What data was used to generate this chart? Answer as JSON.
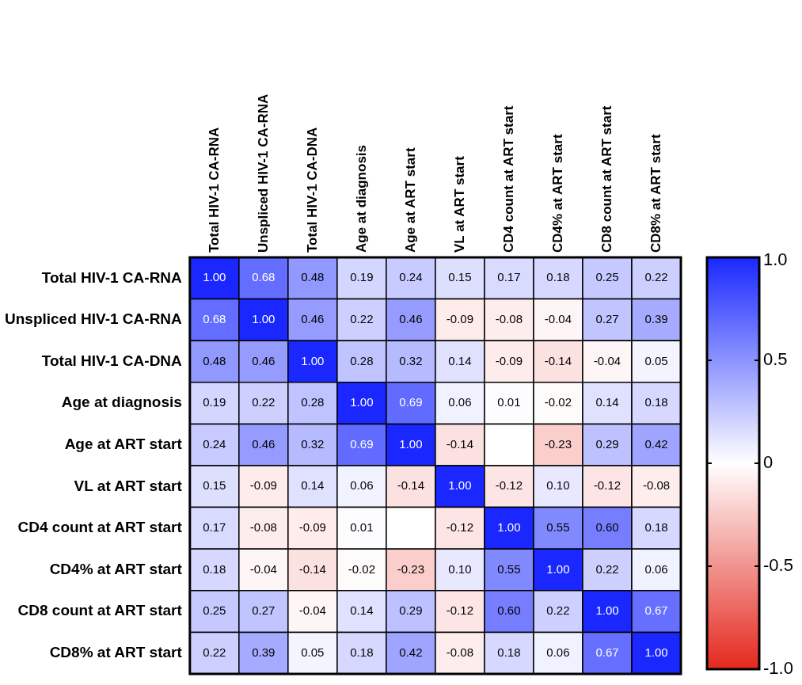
{
  "chart_data": {
    "type": "heatmap",
    "categories": [
      "Total HIV-1 CA-RNA",
      "Unspliced HIV-1 CA-RNA",
      "Total HIV-1 CA-DNA",
      "Age at diagnosis",
      "Age at ART start",
      "VL at ART start",
      "CD4 count at ART start",
      "CD4% at ART start",
      "CD8 count at ART start",
      "CD8% at ART start"
    ],
    "y_categories": [
      "Total HIV-1 CA-RNA",
      "Unspliced HIV-1 CA-RNA",
      "Total HIV-1 CA-DNA",
      "Age at diagnosis",
      "Age at ART start",
      "VL at ART start",
      "CD4 count at ART start",
      "CD4% at ART start",
      "CD8 count at ART start",
      "CD8% at ART start"
    ],
    "cells": [
      [
        1.0,
        0.68,
        0.48,
        0.19,
        0.24,
        0.15,
        0.17,
        0.18,
        0.25,
        0.22
      ],
      [
        0.68,
        1.0,
        0.46,
        0.22,
        0.46,
        -0.09,
        -0.08,
        -0.04,
        0.27,
        0.39
      ],
      [
        0.48,
        0.46,
        1.0,
        0.28,
        0.32,
        0.14,
        -0.09,
        -0.14,
        -0.04,
        0.05
      ],
      [
        0.19,
        0.22,
        0.28,
        1.0,
        0.69,
        0.06,
        0.01,
        -0.02,
        0.14,
        0.18
      ],
      [
        0.24,
        0.46,
        0.32,
        0.69,
        1.0,
        -0.14,
        null,
        -0.23,
        0.29,
        0.42
      ],
      [
        0.15,
        -0.09,
        0.14,
        0.06,
        -0.14,
        1.0,
        -0.12,
        0.1,
        -0.12,
        -0.08
      ],
      [
        0.17,
        -0.08,
        -0.09,
        0.01,
        null,
        -0.12,
        1.0,
        0.55,
        0.6,
        0.18
      ],
      [
        0.18,
        -0.04,
        -0.14,
        -0.02,
        -0.23,
        0.1,
        0.55,
        1.0,
        0.22,
        0.06
      ],
      [
        0.25,
        0.27,
        -0.04,
        0.14,
        0.29,
        -0.12,
        0.6,
        0.22,
        1.0,
        0.67
      ],
      [
        0.22,
        0.39,
        0.05,
        0.18,
        0.42,
        -0.08,
        0.18,
        0.06,
        0.67,
        1.0
      ]
    ],
    "cell_labels": [
      [
        "1.00",
        "0.68",
        "0.48",
        "0.19",
        "0.24",
        "0.15",
        "0.17",
        "0.18",
        "0.25",
        "0.22"
      ],
      [
        "0.68",
        "1.00",
        "0.46",
        "0.22",
        "0.46",
        "-0.09",
        "-0.08",
        "-0.04",
        "0.27",
        "0.39"
      ],
      [
        "0.48",
        "0.46",
        "1.00",
        "0.28",
        "0.32",
        "0.14",
        "-0.09",
        "-0.14",
        "-0.04",
        "0.05"
      ],
      [
        "0.19",
        "0.22",
        "0.28",
        "1.00",
        "0.69",
        "0.06",
        "0.01",
        "-0.02",
        "0.14",
        "0.18"
      ],
      [
        "0.24",
        "0.46",
        "0.32",
        "0.69",
        "1.00",
        "-0.14",
        null,
        "-0.23",
        "0.29",
        "0.42"
      ],
      [
        "0.15",
        "-0.09",
        "0.14",
        "0.06",
        "-0.14",
        "1.00",
        "-0.12",
        "0.10",
        "-0.12",
        "-0.08"
      ],
      [
        "0.17",
        "-0.08",
        "-0.09",
        "0.01",
        null,
        "-0.12",
        "1.00",
        "0.55",
        "0.60",
        "0.18"
      ],
      [
        "0.18",
        "-0.04",
        "-0.14",
        "-0.02",
        "-0.23",
        "0.10",
        "0.55",
        "1.00",
        "0.22",
        "0.06"
      ],
      [
        "0.25",
        "0.27",
        "-0.04",
        "0.14",
        "0.29",
        "-0.12",
        "0.60",
        "0.22",
        "1.00",
        "0.67"
      ],
      [
        "0.22",
        "0.39",
        "0.05",
        "0.18",
        "0.42",
        "-0.08",
        "0.18",
        "0.06",
        "0.67",
        "1.00"
      ]
    ],
    "data_labels": true,
    "clim": [
      -1,
      1
    ],
    "cticks": [
      {
        "value": 1,
        "label": "1.0"
      },
      0.5,
      0,
      -0.5,
      {
        "value": -1,
        "label": "-1.0"
      }
    ]
  }
}
